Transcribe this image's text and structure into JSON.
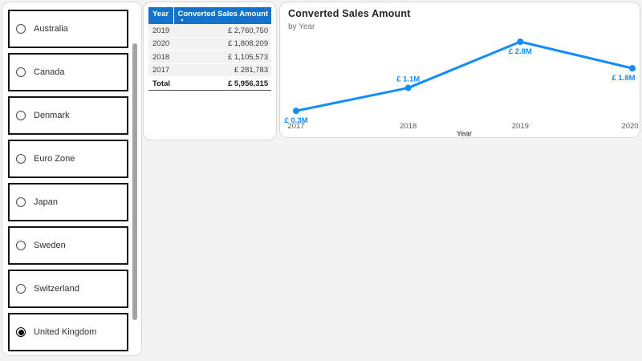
{
  "slicer": {
    "items": [
      {
        "label": "Australia",
        "selected": false
      },
      {
        "label": "Canada",
        "selected": false
      },
      {
        "label": "Denmark",
        "selected": false
      },
      {
        "label": "Euro Zone",
        "selected": false
      },
      {
        "label": "Japan",
        "selected": false
      },
      {
        "label": "Sweden",
        "selected": false
      },
      {
        "label": "Switzerland",
        "selected": false
      },
      {
        "label": "United Kingdom",
        "selected": true
      }
    ]
  },
  "table": {
    "columns": [
      "Year",
      "Converted Sales Amount"
    ],
    "sort_icon": "▼",
    "rows": [
      [
        "2019",
        "£ 2,760,750"
      ],
      [
        "2020",
        "£ 1,808,209"
      ],
      [
        "2018",
        "£ 1,105,573"
      ],
      [
        "2017",
        "£ 281,783"
      ]
    ],
    "total": [
      "Total",
      "£ 5,956,315"
    ]
  },
  "chart_data": {
    "type": "line",
    "title": "Converted Sales Amount",
    "subtitle": "by Year",
    "xlabel": "Year",
    "ylabel": "",
    "categories": [
      "2017",
      "2018",
      "2019",
      "2020"
    ],
    "series": [
      {
        "name": "Converted Sales Amount",
        "values": [
          281783,
          1105573,
          2760750,
          1808209
        ],
        "data_labels": [
          "£ 0.3M",
          "£ 1.1M",
          "£ 2.8M",
          "£ 1.8M"
        ],
        "label_placement": [
          "below",
          "above",
          "below",
          "below"
        ]
      }
    ],
    "ylim": [
      0,
      2900000
    ],
    "y_axis_visible": false,
    "grid": false,
    "legend": "none"
  },
  "colors": {
    "accent": "#118DFF",
    "table_header_bg": "#1173C9",
    "row_bg": "#F2F2F2",
    "text_dark": "#252423",
    "text_gray": "#605E5C"
  }
}
